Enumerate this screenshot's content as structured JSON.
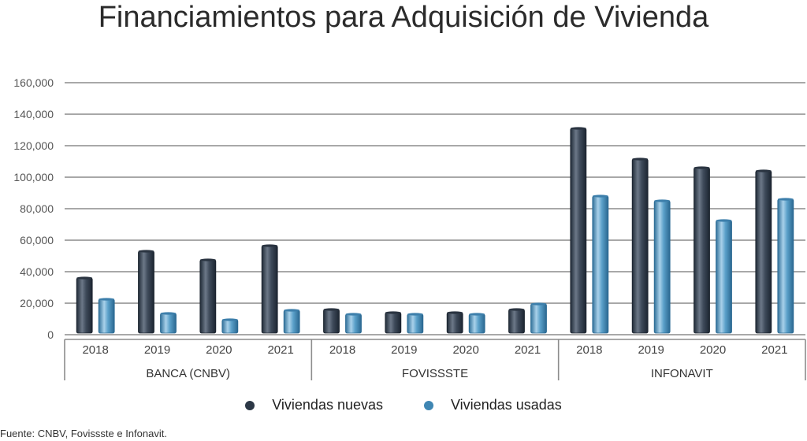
{
  "title": "Financiamientos para Adquisición de Vivienda",
  "source": "Fuente: CNBV, Fovissste e Infonavit.",
  "colors": {
    "nuevas": "#3a4656",
    "usadas": "#4f93bd",
    "grid": "#8a8a8a"
  },
  "chart_data": {
    "type": "bar",
    "title": "Financiamientos para Adquisición de Vivienda",
    "xlabel": "",
    "ylabel": "",
    "ylim": [
      0,
      160000
    ],
    "yticks": [
      "0",
      "20,000",
      "40,000",
      "60,000",
      "80,000",
      "100,000",
      "120,000",
      "140,000",
      "160,000"
    ],
    "grid": true,
    "legend_position": "bottom",
    "groups": [
      {
        "name": "BANCA (CNBV)",
        "categories": [
          "2018",
          "2019",
          "2020",
          "2021"
        ]
      },
      {
        "name": "FOVISSSTE",
        "categories": [
          "2018",
          "2019",
          "2020",
          "2021"
        ]
      },
      {
        "name": "INFONAVIT",
        "categories": [
          "2018",
          "2019",
          "2020",
          "2021"
        ]
      }
    ],
    "series": [
      {
        "name": "Viviendas nuevas",
        "values": [
          36000,
          53000,
          47500,
          56500,
          16000,
          14000,
          14000,
          16000,
          131000,
          111500,
          106000,
          104000
        ]
      },
      {
        "name": "Viviendas usadas",
        "values": [
          22500,
          13500,
          9500,
          15500,
          13000,
          13000,
          13000,
          19500,
          88000,
          85000,
          72500,
          86000
        ]
      }
    ]
  }
}
